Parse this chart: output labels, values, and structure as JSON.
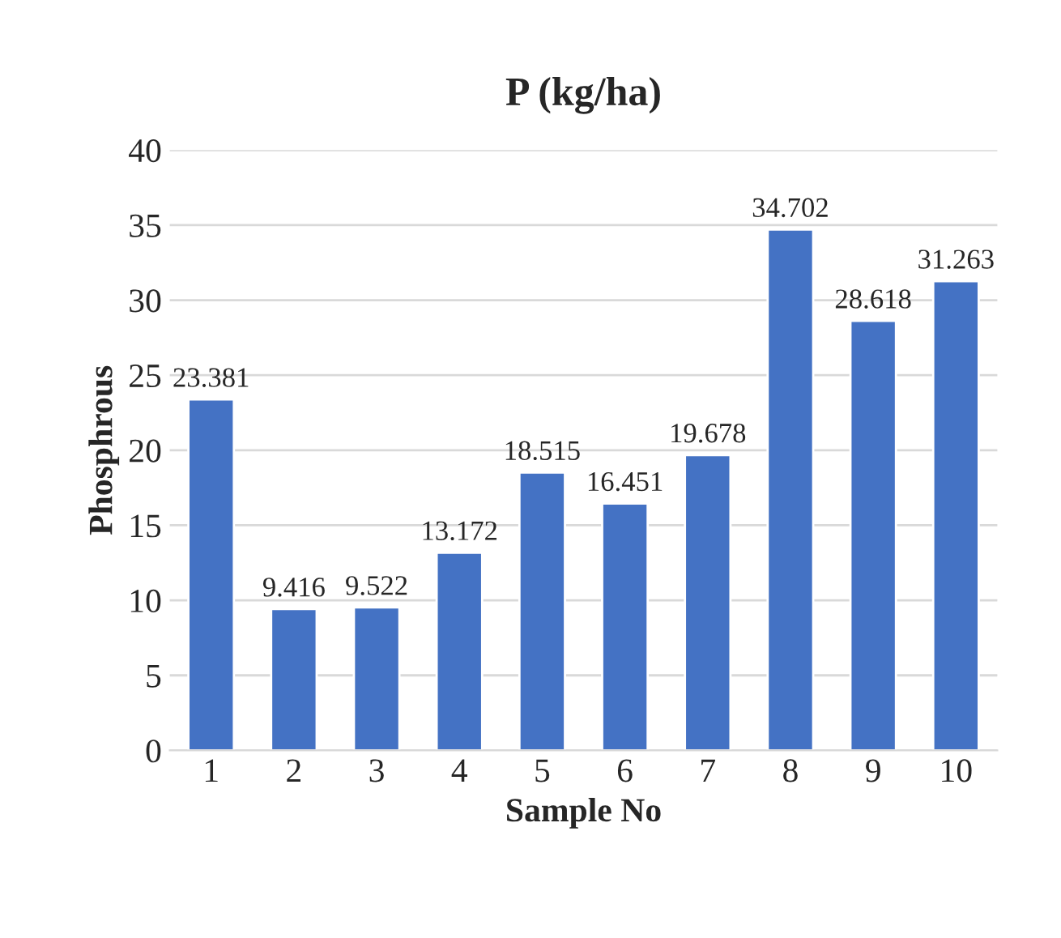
{
  "chart_data": {
    "type": "bar",
    "title": "P (kg/ha)",
    "xlabel": "Sample No",
    "ylabel": "Phosphrous",
    "categories": [
      "1",
      "2",
      "3",
      "4",
      "5",
      "6",
      "7",
      "8",
      "9",
      "10"
    ],
    "values": [
      23.381,
      9.416,
      9.522,
      13.172,
      18.515,
      16.451,
      19.678,
      34.702,
      28.618,
      31.263
    ],
    "color": "#4472c4",
    "ylim": [
      0,
      40
    ],
    "yticks": [
      0,
      5,
      10,
      15,
      20,
      25,
      30,
      35,
      40
    ],
    "grid": "y",
    "data_labels": true
  }
}
